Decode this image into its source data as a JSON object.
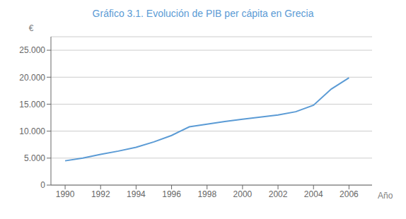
{
  "chart_data": {
    "type": "line",
    "title": "Gráfico 3.1. Evolución de PIB per cápita en Grecia",
    "x_label": "Año",
    "y_label": "€",
    "x": [
      1990,
      1991,
      1992,
      1993,
      1994,
      1995,
      1996,
      1997,
      1998,
      1999,
      2000,
      2001,
      2002,
      2003,
      2004,
      2005,
      2006
    ],
    "values": [
      4500,
      5000,
      5700,
      6300,
      7000,
      8000,
      9200,
      10800,
      11300,
      11800,
      12200,
      12600,
      13000,
      13600,
      14800,
      17800,
      19900
    ],
    "color": "#5b9bd5",
    "xlim": [
      1989.2,
      2007.3
    ],
    "xticks": [
      1990,
      1992,
      1994,
      1996,
      1998,
      2000,
      2002,
      2004,
      2006
    ],
    "ylim": [
      0,
      27500
    ],
    "yticks": [
      0,
      {
        "value": 5000,
        "label": "5.000"
      },
      {
        "value": 10000,
        "label": "10.000"
      },
      {
        "value": 15000,
        "label": "15.000"
      },
      {
        "value": 20000,
        "label": "20.000"
      },
      {
        "value": 25000,
        "label": "25.000"
      }
    ],
    "grid": true
  }
}
